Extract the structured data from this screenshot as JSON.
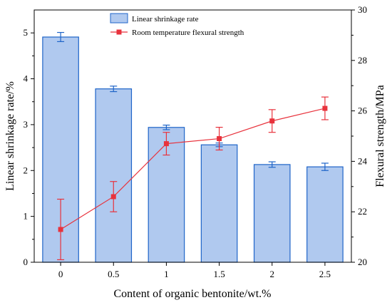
{
  "chart_data": {
    "type": "bar",
    "xlabel": "Content of organic bentonite/wt.%",
    "ylabel": "Linear shrinkage rate/%",
    "y2label": "Flexural strength/MPa",
    "categories": [
      "0",
      "0.5",
      "1",
      "1.5",
      "2",
      "2.5"
    ],
    "ylim": [
      0,
      5.5
    ],
    "y2lim": [
      20,
      30
    ],
    "yticks": [
      "0",
      "1",
      "2",
      "3",
      "4",
      "5"
    ],
    "y2ticks": [
      "20",
      "22",
      "24",
      "26",
      "28",
      "30"
    ],
    "legend_position": "top-center",
    "series": [
      {
        "name": "Linear shrinkage rate",
        "kind": "bar",
        "axis": "left",
        "values": [
          4.91,
          3.78,
          2.94,
          2.56,
          2.13,
          2.08
        ],
        "errors": [
          0.1,
          0.06,
          0.05,
          0.04,
          0.06,
          0.08
        ],
        "fill": "#b0c9ef",
        "stroke": "#1e64c8"
      },
      {
        "name": "Room temperature flexural strength",
        "kind": "line",
        "axis": "right",
        "values": [
          21.3,
          22.6,
          24.7,
          24.9,
          25.6,
          26.1
        ],
        "errors": [
          1.2,
          0.6,
          0.45,
          0.45,
          0.45,
          0.45
        ],
        "color": "#e8323c"
      }
    ]
  }
}
